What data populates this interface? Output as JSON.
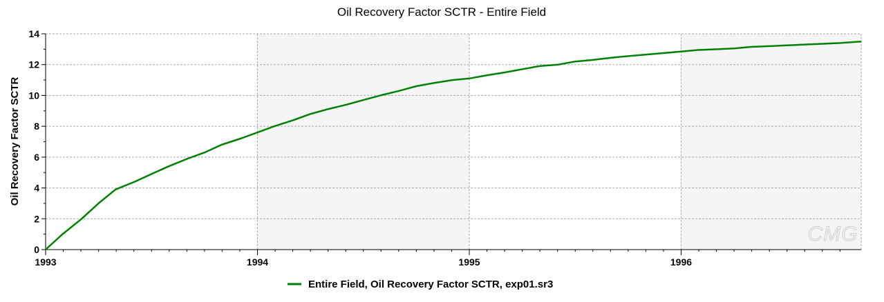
{
  "chart_data": {
    "type": "line",
    "title": "Oil Recovery Factor SCTR - Entire  Field",
    "xlabel": "",
    "ylabel": "Oil Recovery Factor SCTR",
    "xlim": [
      1993,
      1996.85
    ],
    "ylim": [
      0,
      14
    ],
    "x_ticks": [
      "1993",
      "1994",
      "1995",
      "1996"
    ],
    "y_ticks": [
      "0",
      "2",
      "4",
      "6",
      "8",
      "10",
      "12",
      "14"
    ],
    "grid": true,
    "legend_position": "bottom",
    "series": [
      {
        "name": "Entire  Field, Oil Recovery Factor SCTR, exp01.sr3",
        "color": "#008000",
        "x": [
          1993.0,
          1993.08,
          1993.17,
          1993.25,
          1993.33,
          1993.42,
          1993.5,
          1993.58,
          1993.67,
          1993.75,
          1993.83,
          1993.92,
          1994.0,
          1994.08,
          1994.17,
          1994.25,
          1994.33,
          1994.42,
          1994.5,
          1994.58,
          1994.67,
          1994.75,
          1994.83,
          1994.92,
          1995.0,
          1995.08,
          1995.17,
          1995.25,
          1995.33,
          1995.42,
          1995.5,
          1995.58,
          1995.67,
          1995.75,
          1995.83,
          1995.92,
          1996.0,
          1996.08,
          1996.17,
          1996.25,
          1996.33,
          1996.42,
          1996.5,
          1996.58,
          1996.67,
          1996.75,
          1996.85
        ],
        "values": [
          0.0,
          1.0,
          2.0,
          3.0,
          3.9,
          4.4,
          4.9,
          5.4,
          5.9,
          6.3,
          6.8,
          7.2,
          7.6,
          8.0,
          8.4,
          8.8,
          9.1,
          9.4,
          9.7,
          10.0,
          10.3,
          10.6,
          10.8,
          11.0,
          11.1,
          11.3,
          11.5,
          11.7,
          11.9,
          12.0,
          12.2,
          12.3,
          12.45,
          12.55,
          12.65,
          12.75,
          12.85,
          12.95,
          13.0,
          13.05,
          13.15,
          13.2,
          13.25,
          13.3,
          13.35,
          13.4,
          13.5
        ]
      }
    ]
  },
  "watermark": {
    "text": "CMG",
    "color": "#cfcfcf"
  }
}
